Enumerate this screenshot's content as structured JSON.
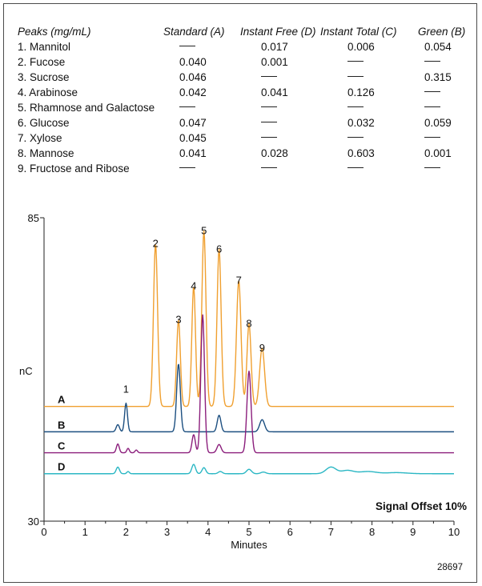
{
  "table": {
    "header": {
      "peaks": "Peaks (mg/mL)",
      "standard": "Standard (A)",
      "instant_free": "Instant Free (D)",
      "instant_total": "Instant Total (C)",
      "green": "Green (B)"
    },
    "rows": [
      {
        "name": "1. Mannitol",
        "values": [
          null,
          "0.017",
          "0.006",
          "0.054"
        ]
      },
      {
        "name": "2. Fucose",
        "values": [
          "0.040",
          "0.001",
          null,
          null
        ]
      },
      {
        "name": "3. Sucrose",
        "values": [
          "0.046",
          null,
          null,
          "0.315"
        ]
      },
      {
        "name": "4. Arabinose",
        "values": [
          "0.042",
          "0.041",
          "0.126",
          null
        ]
      },
      {
        "name": "5. Rhamnose and Galactose",
        "values": [
          null,
          null,
          null,
          null
        ]
      },
      {
        "name": "6. Glucose",
        "values": [
          "0.047",
          null,
          "0.032",
          "0.059"
        ]
      },
      {
        "name": "7. Xylose",
        "values": [
          "0.045",
          null,
          null,
          null
        ]
      },
      {
        "name": "8. Mannose",
        "values": [
          "0.041",
          "0.028",
          "0.603",
          "0.001"
        ]
      },
      {
        "name": "9. Fructose and Ribose",
        "values": [
          null,
          null,
          null,
          null
        ]
      }
    ]
  },
  "figure_id": "28697",
  "chart_data": {
    "type": "line",
    "xlabel": "Minutes",
    "ylabel": "nC",
    "xlim": [
      0,
      10
    ],
    "ylim": [
      30,
      85
    ],
    "x_ticks": [
      "0",
      "1",
      "2",
      "3",
      "4",
      "5",
      "6",
      "7",
      "8",
      "9",
      "10"
    ],
    "y_ticks": [
      "30",
      "85"
    ],
    "annotation": "Signal Offset 10%",
    "peak_labels": [
      {
        "text": "1",
        "x": 2.0,
        "y": 53.3
      },
      {
        "text": "2",
        "x": 2.72,
        "y": 79.7
      },
      {
        "text": "3",
        "x": 3.28,
        "y": 65.9
      },
      {
        "text": "4",
        "x": 3.65,
        "y": 72.0
      },
      {
        "text": "5",
        "x": 3.9,
        "y": 82.0
      },
      {
        "text": "6",
        "x": 4.27,
        "y": 78.7
      },
      {
        "text": "7",
        "x": 4.75,
        "y": 73.0
      },
      {
        "text": "8",
        "x": 5.0,
        "y": 65.2
      },
      {
        "text": "9",
        "x": 5.32,
        "y": 60.8
      }
    ],
    "series": [
      {
        "name": "A",
        "color": "#f0a030",
        "baseline": 50.8,
        "peaks": [
          [
            2.72,
            29.5,
            0.05
          ],
          [
            3.28,
            15.7,
            0.045
          ],
          [
            3.65,
            21.8,
            0.045
          ],
          [
            3.9,
            31.8,
            0.05
          ],
          [
            4.27,
            28.5,
            0.05
          ],
          [
            4.75,
            22.8,
            0.055
          ],
          [
            5.0,
            15.0,
            0.05
          ],
          [
            5.32,
            10.6,
            0.06
          ]
        ]
      },
      {
        "name": "B",
        "color": "#1c4f80",
        "baseline": 46.2,
        "peaks": [
          [
            1.8,
            1.3,
            0.04
          ],
          [
            2.0,
            5.2,
            0.035
          ],
          [
            3.28,
            12.3,
            0.045
          ],
          [
            4.27,
            3.0,
            0.045
          ],
          [
            5.32,
            2.2,
            0.06
          ]
        ]
      },
      {
        "name": "C",
        "color": "#8b1e7c",
        "baseline": 42.4,
        "peaks": [
          [
            1.8,
            1.6,
            0.035
          ],
          [
            2.05,
            0.8,
            0.03
          ],
          [
            2.25,
            0.5,
            0.03
          ],
          [
            3.65,
            3.3,
            0.04
          ],
          [
            3.87,
            25.0,
            0.045
          ],
          [
            4.27,
            1.5,
            0.05
          ],
          [
            5.0,
            14.8,
            0.05
          ]
        ]
      },
      {
        "name": "D",
        "color": "#2bb7c4",
        "baseline": 38.6,
        "peaks": [
          [
            1.8,
            1.2,
            0.04
          ],
          [
            2.05,
            0.4,
            0.03
          ],
          [
            3.65,
            1.7,
            0.045
          ],
          [
            3.9,
            1.1,
            0.045
          ],
          [
            4.3,
            0.4,
            0.05
          ],
          [
            5.0,
            0.8,
            0.06
          ],
          [
            5.35,
            0.3,
            0.06
          ],
          [
            7.0,
            1.2,
            0.12
          ],
          [
            7.4,
            0.6,
            0.15
          ],
          [
            7.9,
            0.4,
            0.2
          ],
          [
            8.6,
            0.2,
            0.25
          ]
        ]
      }
    ]
  }
}
